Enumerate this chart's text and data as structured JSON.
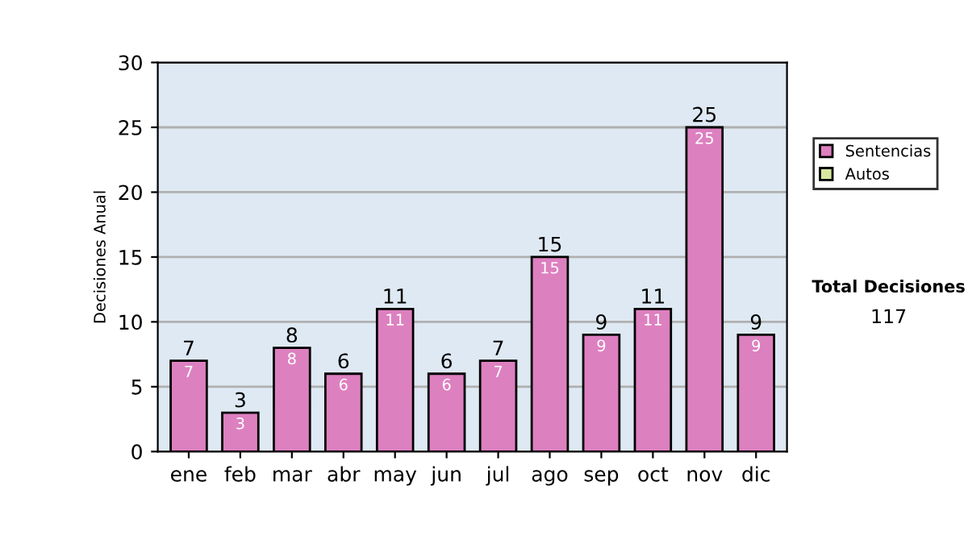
{
  "chart_data": {
    "type": "bar",
    "ylabel": "Decisiones Anual",
    "categories": [
      "ene",
      "feb",
      "mar",
      "abr",
      "may",
      "jun",
      "jul",
      "ago",
      "sep",
      "oct",
      "nov",
      "dic"
    ],
    "stacked": true,
    "series": [
      {
        "name": "Sentencias",
        "color": "#dd80c0",
        "values": [
          7,
          3,
          8,
          6,
          11,
          6,
          7,
          15,
          9,
          11,
          25,
          9
        ],
        "value_labels": [
          "7",
          "3",
          "8",
          "6",
          "11",
          "6",
          "7",
          "15",
          "9",
          "11",
          "25",
          "9"
        ]
      },
      {
        "name": "Autos",
        "color": "#d8e8a0",
        "values": [
          null,
          null,
          null,
          null,
          null,
          null,
          null,
          null,
          null,
          null,
          null,
          null
        ]
      }
    ],
    "totals": [
      "7",
      "3",
      "8",
      "6",
      "11",
      "6",
      "7",
      "15",
      "9",
      "11",
      "25",
      "9"
    ],
    "ylim": [
      0,
      30
    ],
    "yticks": [
      0,
      5,
      10,
      15,
      20,
      25,
      30
    ],
    "grid": "y",
    "legend": "right",
    "annotations": [
      "Total Decisiones",
      "117"
    ]
  }
}
